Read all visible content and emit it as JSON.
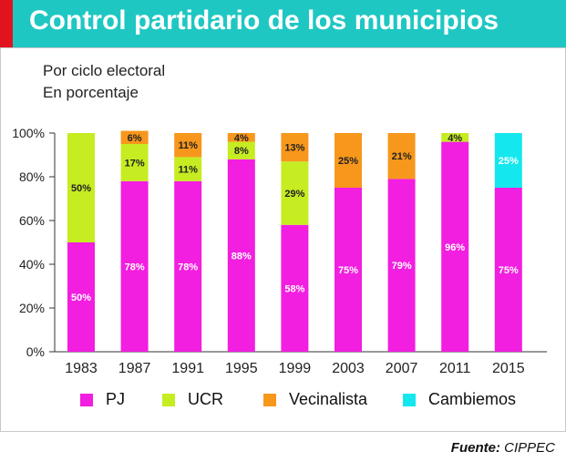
{
  "header": {
    "title": "Control partidario de los municipios"
  },
  "subtitle": {
    "line1": "Por ciclo electoral",
    "line2": "En porcentaje"
  },
  "footer": {
    "label": "Fuente:",
    "source": "CIPPEC"
  },
  "colors": {
    "header_bg": "#1fc7c3",
    "accent_red": "#e0141e",
    "PJ": "#f21ee0",
    "UCR": "#c6ec22",
    "Vecinalista": "#f7971c",
    "Cambiemos": "#14e8ee"
  },
  "chart_data": {
    "type": "bar",
    "stacked": true,
    "categories": [
      "1983",
      "1987",
      "1991",
      "1995",
      "1999",
      "2003",
      "2007",
      "2011",
      "2015"
    ],
    "ylim": [
      0,
      100
    ],
    "yticks": [
      0,
      20,
      40,
      60,
      80,
      100
    ],
    "ytick_labels": [
      "0%",
      "20%",
      "40%",
      "60%",
      "80%",
      "100%"
    ],
    "legend_position": "bottom",
    "grid": false,
    "series": [
      {
        "name": "PJ",
        "values": [
          50,
          78,
          78,
          88,
          58,
          75,
          79,
          96,
          75
        ],
        "labels": [
          "50%",
          "78%",
          "78%",
          "88%",
          "58%",
          "75%",
          "79%",
          "96%",
          "75%"
        ]
      },
      {
        "name": "UCR",
        "values": [
          50,
          17,
          11,
          8,
          29,
          0,
          0,
          4,
          0
        ],
        "labels": [
          "50%",
          "17%",
          "11%",
          "8%",
          "29%",
          "",
          "",
          "4%",
          ""
        ]
      },
      {
        "name": "Vecinalista",
        "values": [
          0,
          6,
          11,
          4,
          13,
          25,
          21,
          0,
          0
        ],
        "labels": [
          "",
          "6%",
          "11%",
          "4%",
          "13%",
          "25%",
          "21%",
          "",
          ""
        ]
      },
      {
        "name": "Cambiemos",
        "values": [
          0,
          0,
          0,
          0,
          0,
          0,
          0,
          0,
          25
        ],
        "labels": [
          "",
          "",
          "",
          "",
          "",
          "",
          "",
          "",
          "25%"
        ]
      }
    ]
  }
}
